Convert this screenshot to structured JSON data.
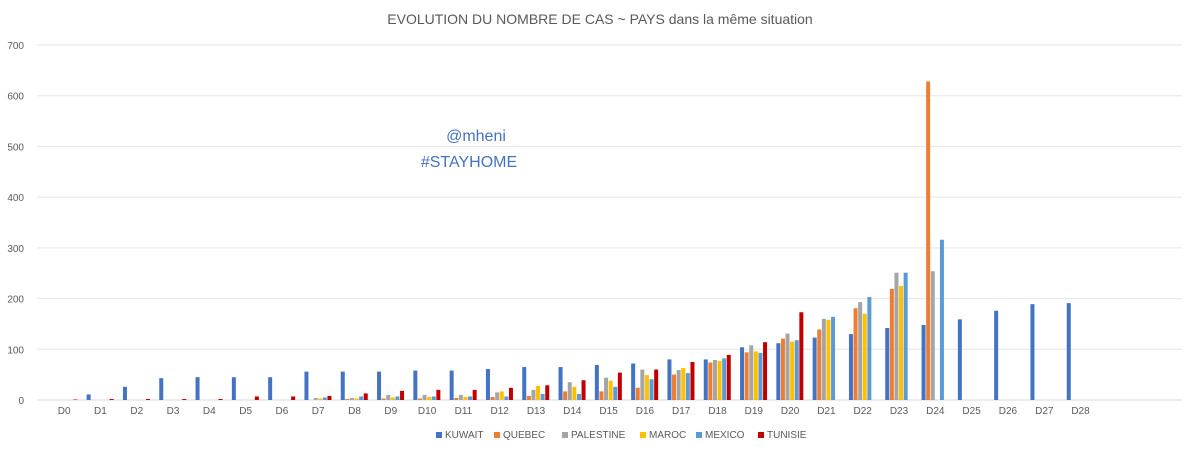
{
  "chart_data": {
    "type": "bar",
    "title": "EVOLUTION DU NOMBRE DE CAS ~ PAYS dans la même situation",
    "watermark": [
      "@mheni",
      "#STAYHOME"
    ],
    "xlabel": "",
    "ylabel": "",
    "ylim": [
      0,
      700
    ],
    "yticks": [
      0,
      100,
      200,
      300,
      400,
      500,
      600,
      700
    ],
    "grid": true,
    "legend_position": "bottom",
    "categories": [
      "D0",
      "D1",
      "D2",
      "D3",
      "D4",
      "D5",
      "D6",
      "D7",
      "D8",
      "D9",
      "D10",
      "D11",
      "D12",
      "D13",
      "D14",
      "D15",
      "D16",
      "D17",
      "D18",
      "D19",
      "D20",
      "D21",
      "D22",
      "D23",
      "D24",
      "D25",
      "D26",
      "D27",
      "D28"
    ],
    "series": [
      {
        "name": "KUWAIT",
        "color": "#4472c4",
        "values": [
          0,
          11,
          26,
          43,
          45,
          45,
          45,
          56,
          56,
          56,
          58,
          58,
          61,
          65,
          65,
          69,
          72,
          80,
          80,
          104,
          112,
          123,
          130,
          142,
          148,
          159,
          176,
          189,
          191
        ]
      },
      {
        "name": "QUEBEC",
        "color": "#ed7d31",
        "values": [
          0,
          0,
          0,
          0,
          0,
          0,
          0,
          0,
          2,
          3,
          3,
          4,
          6,
          8,
          17,
          17,
          24,
          50,
          74,
          94,
          121,
          139,
          181,
          219,
          628,
          null,
          null,
          null,
          null
        ]
      },
      {
        "name": "PALESTINE",
        "color": "#a5a5a5",
        "values": [
          0,
          0,
          0,
          0,
          0,
          0,
          0,
          4,
          4,
          10,
          10,
          10,
          15,
          20,
          35,
          44,
          60,
          59,
          79,
          108,
          131,
          160,
          193,
          251,
          254,
          null,
          null,
          null,
          null
        ]
      },
      {
        "name": "MAROC",
        "color": "#ffc000",
        "values": [
          0,
          0,
          0,
          0,
          0,
          0,
          0,
          3,
          3,
          5,
          6,
          6,
          17,
          28,
          26,
          38,
          49,
          63,
          77,
          96,
          115,
          158,
          170,
          225,
          null,
          null,
          null,
          null,
          null
        ]
      },
      {
        "name": "MEXICO",
        "color": "#5b9bd5",
        "values": [
          0,
          0,
          0,
          0,
          0,
          0,
          0,
          5,
          7,
          7,
          7,
          7,
          7,
          12,
          12,
          26,
          41,
          53,
          82,
          93,
          118,
          164,
          203,
          251,
          316,
          null,
          null,
          null,
          null
        ]
      },
      {
        "name": "TUNISIE",
        "color": "#c00000",
        "values": [
          1,
          2,
          2,
          2,
          2,
          7,
          7,
          8,
          13,
          18,
          20,
          20,
          24,
          29,
          39,
          54,
          60,
          75,
          89,
          114,
          173,
          null,
          null,
          null,
          null,
          null,
          null,
          null,
          null
        ]
      }
    ]
  }
}
